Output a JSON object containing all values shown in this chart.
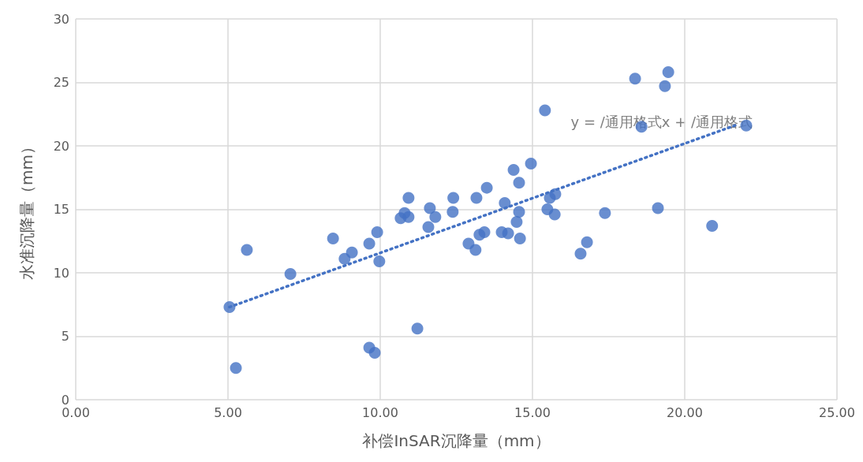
{
  "chart_data": {
    "type": "scatter",
    "xlabel": "补偿InSAR沉降量（mm）",
    "ylabel": "水准沉降量（mm）",
    "xlim": [
      0,
      25
    ],
    "xticks": [
      {
        "value": 0,
        "label": "0.00"
      },
      {
        "value": 5,
        "label": "5.00"
      },
      {
        "value": 10,
        "label": "10.00"
      },
      {
        "value": 15,
        "label": "15.00"
      },
      {
        "value": 20,
        "label": "20.00"
      },
      {
        "value": 25,
        "label": "25.00"
      }
    ],
    "ylim": [
      0,
      30
    ],
    "yticks": [
      0,
      5,
      10,
      15,
      20,
      25,
      30
    ],
    "grid": true,
    "marker": "circle",
    "series": [
      {
        "color": "#4472c4",
        "x": [
          5.05,
          5.26,
          5.62,
          7.05,
          8.45,
          8.83,
          9.07,
          9.64,
          9.64,
          9.82,
          9.9,
          9.97,
          10.67,
          10.8,
          10.93,
          10.93,
          11.22,
          11.58,
          11.63,
          11.81,
          12.38,
          12.4,
          12.9,
          13.13,
          13.16,
          13.26,
          13.42,
          13.5,
          13.99,
          14.09,
          14.2,
          14.38,
          14.48,
          14.56,
          14.56,
          14.59,
          14.95,
          15.41,
          15.49,
          15.57,
          15.75,
          15.73,
          16.58,
          16.79,
          17.38,
          18.37,
          18.58,
          19.12,
          19.35,
          19.46,
          20.9,
          22.02
        ],
        "values": [
          7.3,
          2.5,
          11.8,
          9.9,
          12.7,
          11.1,
          11.6,
          12.3,
          4.1,
          3.7,
          13.2,
          10.9,
          14.3,
          14.7,
          14.4,
          15.9,
          5.6,
          13.6,
          15.1,
          14.4,
          14.8,
          15.9,
          12.3,
          11.8,
          15.9,
          13.0,
          13.2,
          16.7,
          13.2,
          15.5,
          13.1,
          18.1,
          14.0,
          14.8,
          17.1,
          12.7,
          18.6,
          22.8,
          15.0,
          15.9,
          16.2,
          14.6,
          11.5,
          12.4,
          14.7,
          25.3,
          21.5,
          15.1,
          24.7,
          25.8,
          13.7,
          21.6
        ]
      },
      {
        "type": "line",
        "color": "#4472c4",
        "line_style": "dotted",
        "marker": "none",
        "x": [
          5.05,
          21.76
        ],
        "values": [
          7.3,
          21.7
        ]
      }
    ],
    "annotations": [
      "y = /通用格式x + /通用格式"
    ]
  }
}
